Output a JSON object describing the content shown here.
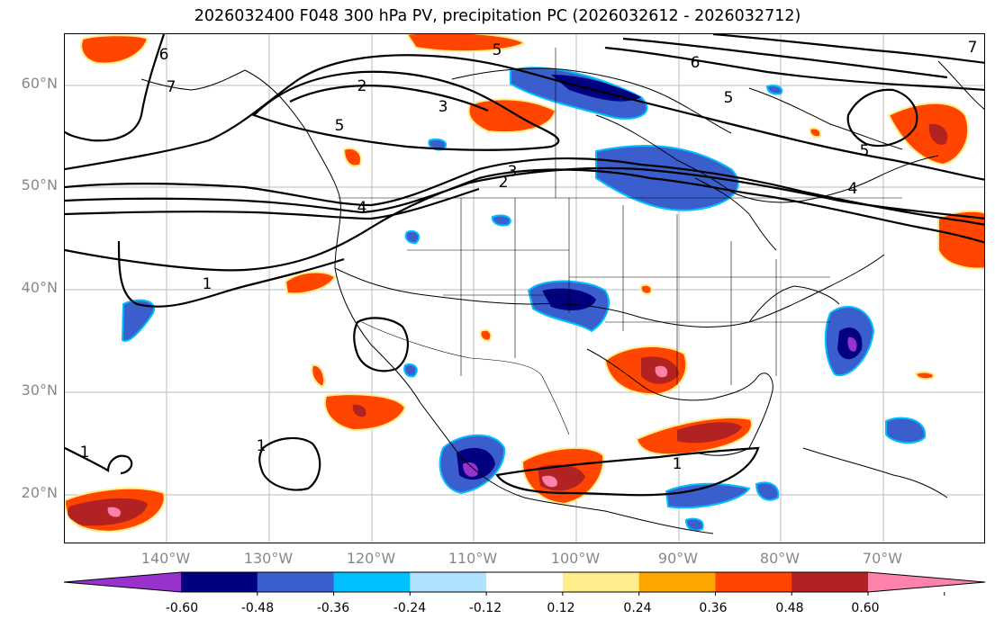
{
  "title": "2026032400 F048 300 hPa PV, precipitation PC (2026032612 - 2026032712)",
  "latitude_labels": [
    "60°N",
    "50°N",
    "40°N",
    "30°N",
    "20°N"
  ],
  "longitude_labels": [
    "140°W",
    "130°W",
    "120°W",
    "110°W",
    "100°W",
    "90°W",
    "80°W",
    "70°W"
  ],
  "map_extent": {
    "lon_min": -150,
    "lon_max": -60,
    "lat_min": 15,
    "lat_max": 65
  },
  "contour_labels": [
    "1",
    "1",
    "1",
    "1",
    "2",
    "2",
    "3",
    "3",
    "4",
    "4",
    "5",
    "5",
    "5",
    "5",
    "6",
    "6",
    "7",
    "7"
  ],
  "colorbar": {
    "ticks": [
      "-0.60",
      "-0.48",
      "-0.36",
      "-0.24",
      "-0.12",
      "0.12",
      "0.24",
      "0.36",
      "0.48",
      "0.60"
    ],
    "colors": [
      "#9932cc",
      "#000080",
      "#3a5fcd",
      "#00bfff",
      "#b0e2ff",
      "#ffffff",
      "#ffec8b",
      "#ffa500",
      "#ff4500",
      "#b22222",
      "#ff82ab"
    ]
  },
  "colors": {
    "gridline": "#bbbbbb",
    "contour": "#000000",
    "axis_label": "#888888"
  }
}
